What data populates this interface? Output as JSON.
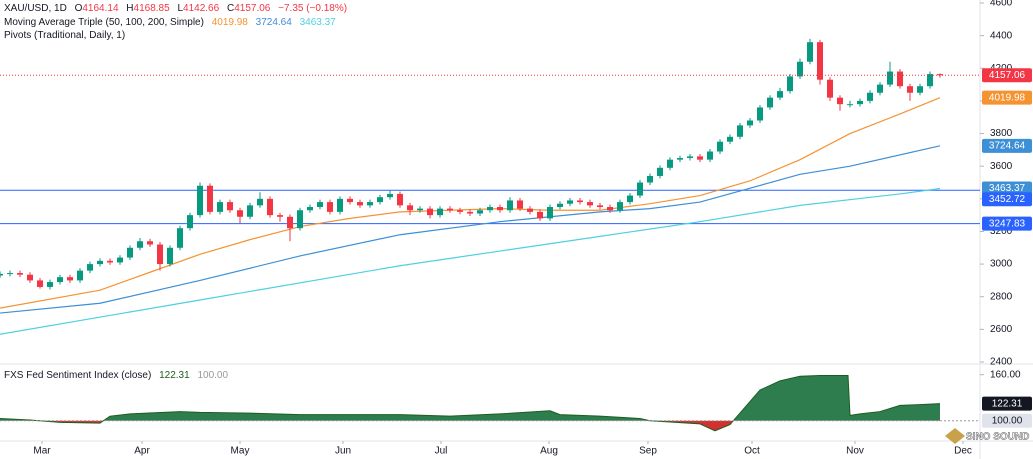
{
  "header": {
    "symbol": "XAU/USD, 1D",
    "ohlc_labels": [
      "O",
      "H",
      "L",
      "C"
    ],
    "change": "−7.35 (−0.18%)",
    "ma_title": "Moving Average Triple (50, 100, 200, Simple)",
    "pivots_title": "Pivots (Traditional, Daily, 1)",
    "indicator_title": "FXS Fed Sentiment Index (close)"
  },
  "watermark": "SINO SOUND",
  "chart_data": [
    {
      "type": "candlestick",
      "up_color": "#089981",
      "down_color": "#f23645",
      "xlim": [
        0,
        98
      ],
      "ylim": [
        2400,
        4600
      ],
      "yticks": [
        2400,
        2600,
        2800,
        3000,
        3200,
        3400,
        3600,
        3800,
        4000,
        4200,
        4400,
        4600
      ],
      "xticks": [
        {
          "value": 4.2,
          "label": "Mar"
        },
        {
          "value": 14.2,
          "label": "Apr"
        },
        {
          "value": 24,
          "label": "May"
        },
        {
          "value": 34.3,
          "label": "Jun"
        },
        {
          "value": 44.1,
          "label": "Jul"
        },
        {
          "value": 54.9,
          "label": "Aug"
        },
        {
          "value": 64.8,
          "label": "Sep"
        },
        {
          "value": 75.2,
          "label": "Oct"
        },
        {
          "value": 85.5,
          "label": "Nov"
        },
        {
          "value": 96.3,
          "label": "Dec"
        }
      ],
      "x": [
        0,
        1,
        2,
        3,
        4,
        5,
        6,
        7,
        8,
        9,
        10,
        11,
        12,
        13,
        14,
        15,
        16,
        17,
        18,
        19,
        20,
        21,
        22,
        23,
        24,
        25,
        26,
        27,
        28,
        29,
        30,
        31,
        32,
        33,
        34,
        35,
        36,
        37,
        38,
        39,
        40,
        41,
        42,
        43,
        44,
        45,
        46,
        47,
        48,
        49,
        50,
        51,
        52,
        53,
        54,
        55,
        56,
        57,
        58,
        59,
        60,
        61,
        62,
        63,
        64,
        65,
        66,
        67,
        68,
        69,
        70,
        71,
        72,
        73,
        74,
        75,
        76,
        77,
        78,
        79,
        80,
        81,
        82,
        83,
        84,
        85,
        86,
        87,
        88,
        89,
        90,
        91,
        92,
        93,
        94
      ],
      "open": [
        2930,
        2940,
        2945,
        2935,
        2900,
        2860,
        2890,
        2920,
        2900,
        2960,
        3000,
        3020,
        3010,
        3040,
        3100,
        3140,
        3120,
        3000,
        3100,
        3220,
        3300,
        3480,
        3320,
        3380,
        3330,
        3290,
        3360,
        3400,
        3300,
        3290,
        3220,
        3330,
        3350,
        3380,
        3320,
        3400,
        3380,
        3360,
        3380,
        3410,
        3430,
        3360,
        3330,
        3340,
        3300,
        3340,
        3330,
        3320,
        3310,
        3330,
        3350,
        3330,
        3390,
        3340,
        3320,
        3280,
        3350,
        3370,
        3390,
        3380,
        3360,
        3350,
        3330,
        3380,
        3420,
        3500,
        3540,
        3590,
        3640,
        3650,
        3660,
        3640,
        3690,
        3750,
        3780,
        3850,
        3880,
        3960,
        4020,
        4060,
        4150,
        4240,
        4360,
        4130,
        4020,
        3980,
        3980,
        4000,
        4050,
        4100,
        4180,
        4090,
        4050,
        4090,
        4164.14
      ],
      "high": [
        2955,
        2960,
        2960,
        2950,
        2915,
        2905,
        2935,
        2935,
        2975,
        3015,
        3035,
        3035,
        3055,
        3115,
        3160,
        3155,
        3135,
        3115,
        3235,
        3315,
        3500,
        3495,
        3395,
        3395,
        3345,
        3375,
        3440,
        3415,
        3315,
        3305,
        3345,
        3365,
        3395,
        3395,
        3415,
        3415,
        3395,
        3395,
        3425,
        3450,
        3445,
        3375,
        3355,
        3355,
        3355,
        3355,
        3345,
        3335,
        3345,
        3365,
        3365,
        3410,
        3405,
        3355,
        3335,
        3365,
        3385,
        3405,
        3405,
        3395,
        3375,
        3365,
        3395,
        3435,
        3515,
        3555,
        3605,
        3655,
        3665,
        3675,
        3675,
        3705,
        3765,
        3795,
        3865,
        3895,
        3975,
        4035,
        4080,
        4165,
        4260,
        4380,
        4375,
        4145,
        4035,
        4000,
        4015,
        4065,
        4115,
        4240,
        4195,
        4105,
        4105,
        4180,
        4168.85
      ],
      "low": [
        2915,
        2925,
        2920,
        2885,
        2850,
        2845,
        2875,
        2885,
        2885,
        2945,
        2985,
        2995,
        2995,
        3025,
        3085,
        3105,
        2960,
        2985,
        3085,
        3205,
        3285,
        3305,
        3305,
        3315,
        3250,
        3275,
        3345,
        3285,
        3260,
        3140,
        3205,
        3315,
        3335,
        3305,
        3305,
        3365,
        3345,
        3345,
        3365,
        3395,
        3345,
        3300,
        3315,
        3280,
        3285,
        3315,
        3305,
        3295,
        3295,
        3315,
        3315,
        3315,
        3325,
        3305,
        3265,
        3265,
        3335,
        3355,
        3365,
        3345,
        3335,
        3315,
        3315,
        3365,
        3405,
        3485,
        3525,
        3575,
        3625,
        3635,
        3625,
        3625,
        3675,
        3735,
        3765,
        3835,
        3865,
        3945,
        4005,
        4045,
        4135,
        4225,
        4100,
        4000,
        3940,
        3960,
        3965,
        3985,
        4035,
        4085,
        4075,
        4000,
        4035,
        4075,
        4142.66
      ],
      "close": [
        2940,
        2945,
        2935,
        2900,
        2860,
        2890,
        2920,
        2900,
        2960,
        3000,
        3020,
        3010,
        3040,
        3100,
        3140,
        3120,
        3000,
        3100,
        3220,
        3300,
        3480,
        3320,
        3380,
        3330,
        3290,
        3360,
        3400,
        3300,
        3290,
        3220,
        3330,
        3350,
        3380,
        3320,
        3400,
        3380,
        3360,
        3380,
        3410,
        3430,
        3360,
        3330,
        3340,
        3300,
        3340,
        3330,
        3320,
        3310,
        3330,
        3350,
        3330,
        3390,
        3340,
        3320,
        3280,
        3350,
        3370,
        3390,
        3380,
        3360,
        3350,
        3330,
        3380,
        3420,
        3500,
        3540,
        3590,
        3640,
        3650,
        3660,
        3640,
        3690,
        3750,
        3780,
        3850,
        3880,
        3960,
        4020,
        4060,
        4150,
        4240,
        4360,
        4130,
        4020,
        3980,
        3980,
        4000,
        4050,
        4100,
        4180,
        4090,
        4050,
        4090,
        4164.41,
        4157.06
      ],
      "series": [
        {
          "name": "MA 50",
          "color": "#f59331",
          "x": [
            0,
            10,
            15,
            20,
            25,
            30,
            35,
            40,
            45,
            50,
            55,
            60,
            65,
            70,
            75,
            80,
            85,
            90,
            94
          ],
          "values": [
            2730,
            2840,
            2950,
            3060,
            3150,
            3230,
            3280,
            3320,
            3330,
            3340,
            3330,
            3330,
            3370,
            3420,
            3510,
            3640,
            3800,
            3920,
            4019.98
          ]
        },
        {
          "name": "MA 100",
          "color": "#3d8fd6",
          "x": [
            0,
            10,
            20,
            30,
            40,
            50,
            60,
            65,
            70,
            80,
            85,
            94
          ],
          "values": [
            2700,
            2760,
            2900,
            3050,
            3180,
            3260,
            3320,
            3340,
            3380,
            3550,
            3600,
            3724.64
          ]
        },
        {
          "name": "MA 200",
          "color": "#4dd0e1",
          "x": [
            0,
            20,
            40,
            50,
            60,
            70,
            80,
            90,
            94
          ],
          "values": [
            2570,
            2780,
            2990,
            3080,
            3170,
            3260,
            3360,
            3430,
            3463.37
          ]
        }
      ],
      "pivots": {
        "color": "#2962ff",
        "levels": [
          3452.72,
          3247.83
        ]
      }
    },
    {
      "type": "area",
      "xlim": [
        0,
        98
      ],
      "ylim": [
        75,
        170
      ],
      "yticks": [
        {
          "value": 160,
          "label": "160.00"
        }
      ],
      "baseline": {
        "value": 100,
        "label": "100.00"
      },
      "above_color": "#2e7d4f",
      "below_color": "#d32f2f",
      "series": [
        {
          "name": "FXS Fed Sentiment Index",
          "color": "#1b5e20",
          "x": [
            0,
            3,
            6,
            10,
            11,
            13,
            18,
            20,
            25,
            30,
            35,
            40,
            45,
            50,
            55,
            56,
            60,
            64,
            65,
            70,
            71.5,
            73,
            74,
            76,
            78,
            80,
            82,
            84.8,
            85,
            86,
            88,
            90,
            92,
            94
          ],
          "values": [
            103,
            101,
            98,
            97,
            106,
            109,
            112,
            111,
            110,
            108,
            108,
            108,
            106,
            109,
            113,
            108,
            106,
            103,
            100,
            96,
            87,
            95,
            110,
            140,
            152,
            158,
            159,
            159,
            107,
            109,
            112,
            120,
            121,
            122.31
          ]
        }
      ]
    }
  ]
}
